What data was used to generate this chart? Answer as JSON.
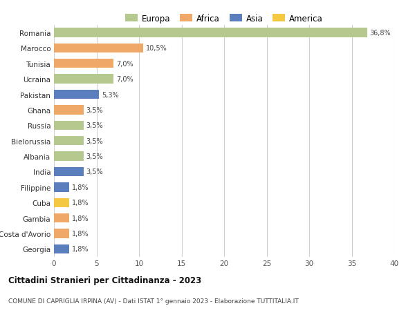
{
  "countries": [
    "Romania",
    "Marocco",
    "Tunisia",
    "Ucraina",
    "Pakistan",
    "Ghana",
    "Russia",
    "Bielorussia",
    "Albania",
    "India",
    "Filippine",
    "Cuba",
    "Gambia",
    "Costa d'Avorio",
    "Georgia"
  ],
  "values": [
    36.8,
    10.5,
    7.0,
    7.0,
    5.3,
    3.5,
    3.5,
    3.5,
    3.5,
    3.5,
    1.8,
    1.8,
    1.8,
    1.8,
    1.8
  ],
  "labels": [
    "36,8%",
    "10,5%",
    "7,0%",
    "7,0%",
    "5,3%",
    "3,5%",
    "3,5%",
    "3,5%",
    "3,5%",
    "3,5%",
    "1,8%",
    "1,8%",
    "1,8%",
    "1,8%",
    "1,8%"
  ],
  "continents": [
    "Europa",
    "Africa",
    "Africa",
    "Europa",
    "Asia",
    "Africa",
    "Europa",
    "Europa",
    "Europa",
    "Asia",
    "Asia",
    "America",
    "Africa",
    "Africa",
    "Asia"
  ],
  "colors": {
    "Europa": "#b5c98e",
    "Africa": "#f0a868",
    "Asia": "#5b7fbc",
    "America": "#f5c842"
  },
  "legend_order": [
    "Europa",
    "Africa",
    "Asia",
    "America"
  ],
  "xlim": [
    0,
    40
  ],
  "xticks": [
    0,
    5,
    10,
    15,
    20,
    25,
    30,
    35,
    40
  ],
  "title": "Cittadini Stranieri per Cittadinanza - 2023",
  "subtitle": "COMUNE DI CAPRIGLIA IRPINA (AV) - Dati ISTAT 1° gennaio 2023 - Elaborazione TUTTITALIA.IT",
  "bg_color": "#ffffff",
  "grid_color": "#d0d0d0",
  "bar_height": 0.6
}
